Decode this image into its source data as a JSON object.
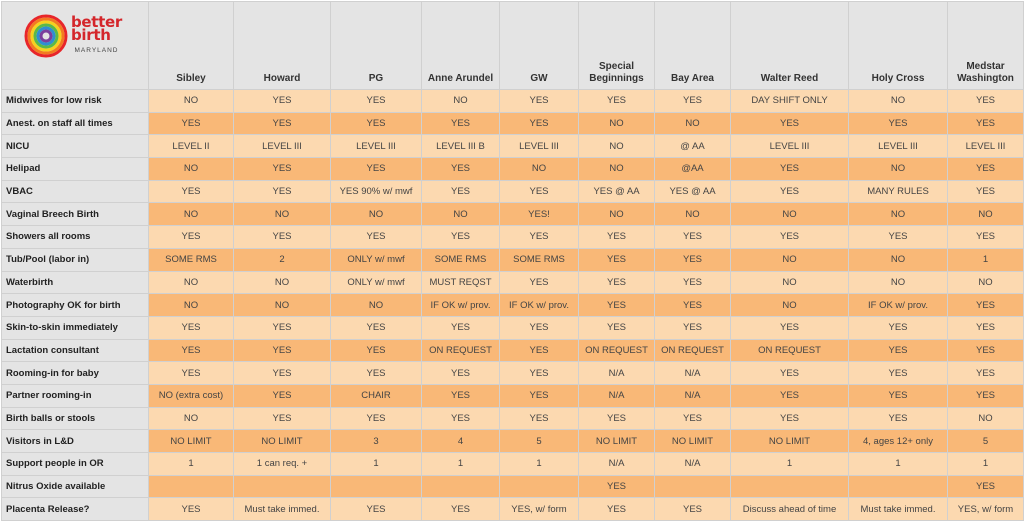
{
  "logo": {
    "line1": "better",
    "line2": "birth",
    "sub": "MARYLAND"
  },
  "colors": {
    "row_odd": "#fcd9b0",
    "row_even": "#f9b877",
    "header_bg": "#e4e4e4",
    "logo_red": "#d4262b"
  },
  "columns": [
    "Sibley",
    "Howard",
    "PG",
    "Anne Arundel",
    "GW",
    "Special Beginnings",
    "Bay Area",
    "Walter Reed",
    "Holy Cross",
    "Medstar Washington"
  ],
  "rows": [
    {
      "label": "Midwives for low risk",
      "values": [
        "NO",
        "YES",
        "YES",
        "NO",
        "YES",
        "YES",
        "YES",
        "DAY SHIFT ONLY",
        "NO",
        "YES"
      ]
    },
    {
      "label": "Anest. on staff all times",
      "values": [
        "YES",
        "YES",
        "YES",
        "YES",
        "YES",
        "NO",
        "NO",
        "YES",
        "YES",
        "YES"
      ]
    },
    {
      "label": "NICU",
      "values": [
        "LEVEL II",
        "LEVEL III",
        "LEVEL III",
        "LEVEL III B",
        "LEVEL III",
        "NO",
        "@ AA",
        "LEVEL III",
        "LEVEL III",
        "LEVEL III"
      ]
    },
    {
      "label": "Helipad",
      "values": [
        "NO",
        "YES",
        "YES",
        "YES",
        "NO",
        "NO",
        "@AA",
        "YES",
        "NO",
        "YES"
      ]
    },
    {
      "label": "VBAC",
      "values": [
        "YES",
        "YES",
        "YES 90% w/ mwf",
        "YES",
        "YES",
        "YES @ AA",
        "YES @ AA",
        "YES",
        "MANY RULES",
        "YES"
      ]
    },
    {
      "label": "Vaginal Breech Birth",
      "values": [
        "NO",
        "NO",
        "NO",
        "NO",
        "YES!",
        "NO",
        "NO",
        "NO",
        "NO",
        "NO"
      ]
    },
    {
      "label": "Showers all rooms",
      "values": [
        "YES",
        "YES",
        "YES",
        "YES",
        "YES",
        "YES",
        "YES",
        "YES",
        "YES",
        "YES"
      ]
    },
    {
      "label": "Tub/Pool (labor in)",
      "values": [
        "SOME RMS",
        "2",
        "ONLY w/ mwf",
        "SOME RMS",
        "SOME RMS",
        "YES",
        "YES",
        "NO",
        "NO",
        "1"
      ]
    },
    {
      "label": "Waterbirth",
      "values": [
        "NO",
        "NO",
        "ONLY w/ mwf",
        "MUST REQST",
        "YES",
        "YES",
        "YES",
        "NO",
        "NO",
        "NO"
      ]
    },
    {
      "label": "Photography OK for birth",
      "values": [
        "NO",
        "NO",
        "NO",
        "IF OK w/ prov.",
        "IF OK w/ prov.",
        "YES",
        "YES",
        "NO",
        "IF OK w/ prov.",
        "YES"
      ]
    },
    {
      "label": "Skin-to-skin immediately",
      "values": [
        "YES",
        "YES",
        "YES",
        "YES",
        "YES",
        "YES",
        "YES",
        "YES",
        "YES",
        "YES"
      ]
    },
    {
      "label": "Lactation consultant",
      "values": [
        "YES",
        "YES",
        "YES",
        "ON REQUEST",
        "YES",
        "ON REQUEST",
        "ON REQUEST",
        "ON REQUEST",
        "YES",
        "YES"
      ]
    },
    {
      "label": "Rooming-in for baby",
      "values": [
        "YES",
        "YES",
        "YES",
        "YES",
        "YES",
        "N/A",
        "N/A",
        "YES",
        "YES",
        "YES"
      ]
    },
    {
      "label": "Partner rooming-in",
      "values": [
        "NO (extra cost)",
        "YES",
        "CHAIR",
        "YES",
        "YES",
        "N/A",
        "N/A",
        "YES",
        "YES",
        "YES"
      ]
    },
    {
      "label": "Birth balls or stools",
      "values": [
        "NO",
        "YES",
        "YES",
        "YES",
        "YES",
        "YES",
        "YES",
        "YES",
        "YES",
        "NO"
      ]
    },
    {
      "label": "Visitors in L&D",
      "values": [
        "NO LIMIT",
        "NO LIMIT",
        "3",
        "4",
        "5",
        "NO LIMIT",
        "NO LIMIT",
        "NO LIMIT",
        "4, ages 12+ only",
        "5"
      ]
    },
    {
      "label": "Support people in OR",
      "values": [
        "1",
        "1 can req. +",
        "1",
        "1",
        "1",
        "N/A",
        "N/A",
        "1",
        "1",
        "1"
      ]
    },
    {
      "label": "Nitrus Oxide available",
      "values": [
        "",
        "",
        "",
        "",
        "",
        "YES",
        "",
        "",
        "",
        "YES"
      ]
    },
    {
      "label": "Placenta Release?",
      "values": [
        "YES",
        "Must take immed.",
        "YES",
        "YES",
        "YES, w/ form",
        "YES",
        "YES",
        "Discuss ahead of time",
        "Must take immed.",
        "YES, w/ form"
      ]
    }
  ]
}
